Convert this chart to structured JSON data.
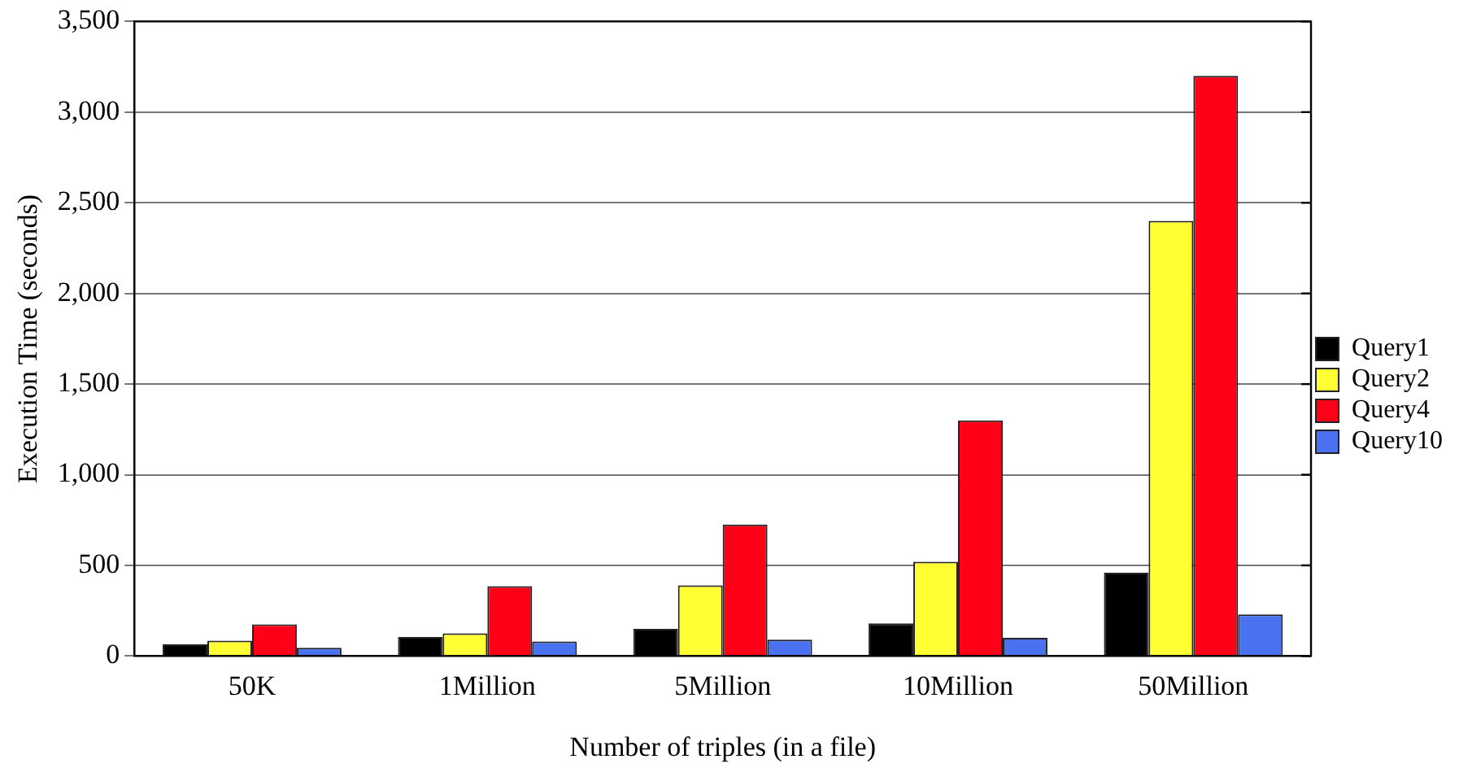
{
  "chart_data": {
    "type": "bar",
    "xlabel": "Number of triples (in a file)",
    "ylabel": "Execution Time (seconds)",
    "categories": [
      "50K",
      "1Million",
      "5Million",
      "10Million",
      "50Million"
    ],
    "series": [
      {
        "name": "Query1",
        "color": "#000000",
        "values": [
          65,
          105,
          150,
          180,
          460
        ]
      },
      {
        "name": "Query2",
        "color": "#ffff33",
        "values": [
          85,
          125,
          390,
          520,
          2400
        ]
      },
      {
        "name": "Query4",
        "color": "#ff0018",
        "values": [
          175,
          385,
          725,
          1300,
          3200
        ]
      },
      {
        "name": "Query10",
        "color": "#4a72f0",
        "values": [
          45,
          80,
          90,
          100,
          230
        ]
      }
    ],
    "ylim": [
      0,
      3500
    ],
    "yticks": [
      {
        "value": 0,
        "label": "0"
      },
      {
        "value": 500,
        "label": "500"
      },
      {
        "value": 1000,
        "label": "1,000"
      },
      {
        "value": 1500,
        "label": "1,500"
      },
      {
        "value": 2000,
        "label": "2,000"
      },
      {
        "value": 2500,
        "label": "2,500"
      },
      {
        "value": 3000,
        "label": "3,000"
      },
      {
        "value": 3500,
        "label": "3,500"
      }
    ],
    "grid": "y",
    "legend": "right"
  }
}
